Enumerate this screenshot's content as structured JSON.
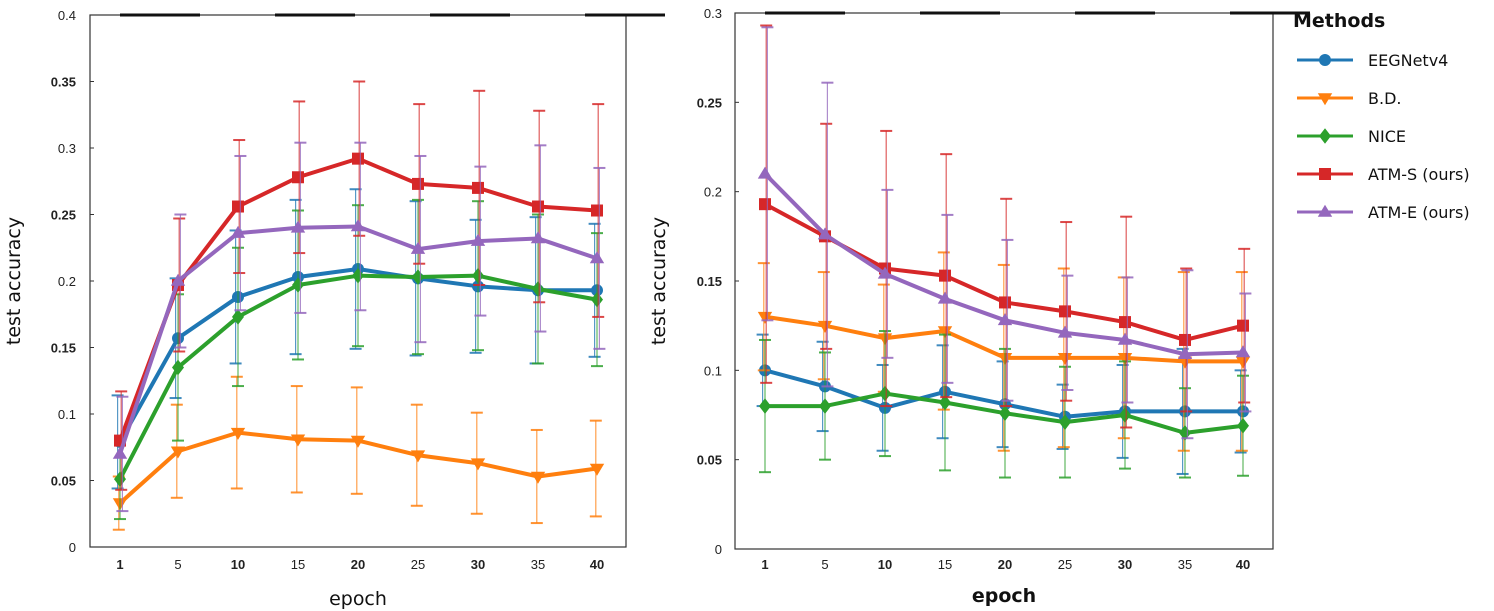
{
  "chart_data": [
    {
      "type": "line",
      "panel": "left",
      "xlabel": "epoch",
      "ylabel": "test accuracy",
      "x": [
        1,
        5,
        10,
        15,
        20,
        25,
        30,
        35,
        40
      ],
      "xtick_labels": [
        "1",
        "5",
        "10",
        "15",
        "20",
        "25",
        "30",
        "35",
        "40"
      ],
      "ylim": [
        0,
        0.4
      ],
      "ytick_labels": [
        "0",
        "0.05",
        "0.1",
        "0.15",
        "0.2",
        "0.25",
        "0.3",
        "0.35",
        "0.4"
      ],
      "series": [
        {
          "name": "EEGNetv4",
          "values": [
            0.079,
            0.157,
            0.188,
            0.203,
            0.209,
            0.202,
            0.196,
            0.193,
            0.193
          ],
          "err": [
            0.035,
            0.045,
            0.05,
            0.058,
            0.06,
            0.058,
            0.05,
            0.055,
            0.05
          ]
        },
        {
          "name": "B.D.",
          "values": [
            0.033,
            0.072,
            0.086,
            0.081,
            0.08,
            0.069,
            0.063,
            0.053,
            0.059
          ],
          "err": [
            0.02,
            0.035,
            0.042,
            0.04,
            0.04,
            0.038,
            0.038,
            0.035,
            0.036
          ]
        },
        {
          "name": "NICE",
          "values": [
            0.051,
            0.135,
            0.173,
            0.197,
            0.204,
            0.203,
            0.204,
            0.194,
            0.186
          ],
          "err": [
            0.03,
            0.055,
            0.052,
            0.056,
            0.053,
            0.058,
            0.056,
            0.056,
            0.05
          ]
        },
        {
          "name": "ATM-S (ours)",
          "values": [
            0.08,
            0.197,
            0.256,
            0.278,
            0.292,
            0.273,
            0.27,
            0.256,
            0.253
          ],
          "err": [
            0.037,
            0.05,
            0.05,
            0.057,
            0.058,
            0.06,
            0.073,
            0.072,
            0.08
          ]
        },
        {
          "name": "ATM-E (ours)",
          "values": [
            0.07,
            0.2,
            0.236,
            0.24,
            0.241,
            0.224,
            0.23,
            0.232,
            0.217
          ],
          "err": [
            0.043,
            0.05,
            0.058,
            0.064,
            0.063,
            0.07,
            0.056,
            0.07,
            0.068
          ]
        }
      ]
    },
    {
      "type": "line",
      "panel": "right",
      "xlabel": "epoch",
      "ylabel": "test accuracy",
      "x": [
        1,
        5,
        10,
        15,
        20,
        25,
        30,
        35,
        40
      ],
      "xtick_labels": [
        "1",
        "5",
        "10",
        "15",
        "20",
        "25",
        "30",
        "35",
        "40"
      ],
      "ylim": [
        0,
        0.3
      ],
      "ytick_labels": [
        "0",
        "0.05",
        "0.1",
        "0.15",
        "0.2",
        "0.25",
        "0.3"
      ],
      "series": [
        {
          "name": "EEGNetv4",
          "values": [
            0.1,
            0.091,
            0.079,
            0.088,
            0.081,
            0.074,
            0.077,
            0.077,
            0.077
          ],
          "err": [
            0.02,
            0.025,
            0.024,
            0.026,
            0.024,
            0.018,
            0.026,
            0.035,
            0.023
          ]
        },
        {
          "name": "B.D.",
          "values": [
            0.13,
            0.125,
            0.118,
            0.122,
            0.107,
            0.107,
            0.107,
            0.105,
            0.105
          ],
          "err": [
            0.03,
            0.03,
            0.03,
            0.044,
            0.052,
            0.05,
            0.045,
            0.05,
            0.05
          ]
        },
        {
          "name": "NICE",
          "values": [
            0.08,
            0.08,
            0.087,
            0.082,
            0.076,
            0.071,
            0.075,
            0.065,
            0.069
          ],
          "err": [
            0.037,
            0.03,
            0.035,
            0.038,
            0.036,
            0.031,
            0.03,
            0.025,
            0.028
          ]
        },
        {
          "name": "ATM-S (ours)",
          "values": [
            0.193,
            0.175,
            0.157,
            0.153,
            0.138,
            0.133,
            0.127,
            0.117,
            0.125
          ],
          "err": [
            0.1,
            0.063,
            0.077,
            0.068,
            0.058,
            0.05,
            0.059,
            0.04,
            0.043
          ]
        },
        {
          "name": "ATM-E (ours)",
          "values": [
            0.21,
            0.176,
            0.154,
            0.14,
            0.128,
            0.121,
            0.117,
            0.109,
            0.11
          ],
          "err": [
            0.082,
            0.085,
            0.047,
            0.047,
            0.045,
            0.032,
            0.035,
            0.047,
            0.033
          ]
        }
      ]
    }
  ],
  "legend": {
    "title": "Methods",
    "items": [
      {
        "name": "EEGNetv4",
        "color": "#1f77b4",
        "marker": "circle"
      },
      {
        "name": "B.D.",
        "color": "#ff7f0e",
        "marker": "triangle-down"
      },
      {
        "name": "NICE",
        "color": "#2ca02c",
        "marker": "diamond"
      },
      {
        "name": "ATM-S (ours)",
        "color": "#d62728",
        "marker": "square"
      },
      {
        "name": "ATM-E (ours)",
        "color": "#9467bd",
        "marker": "triangle-up"
      }
    ]
  }
}
